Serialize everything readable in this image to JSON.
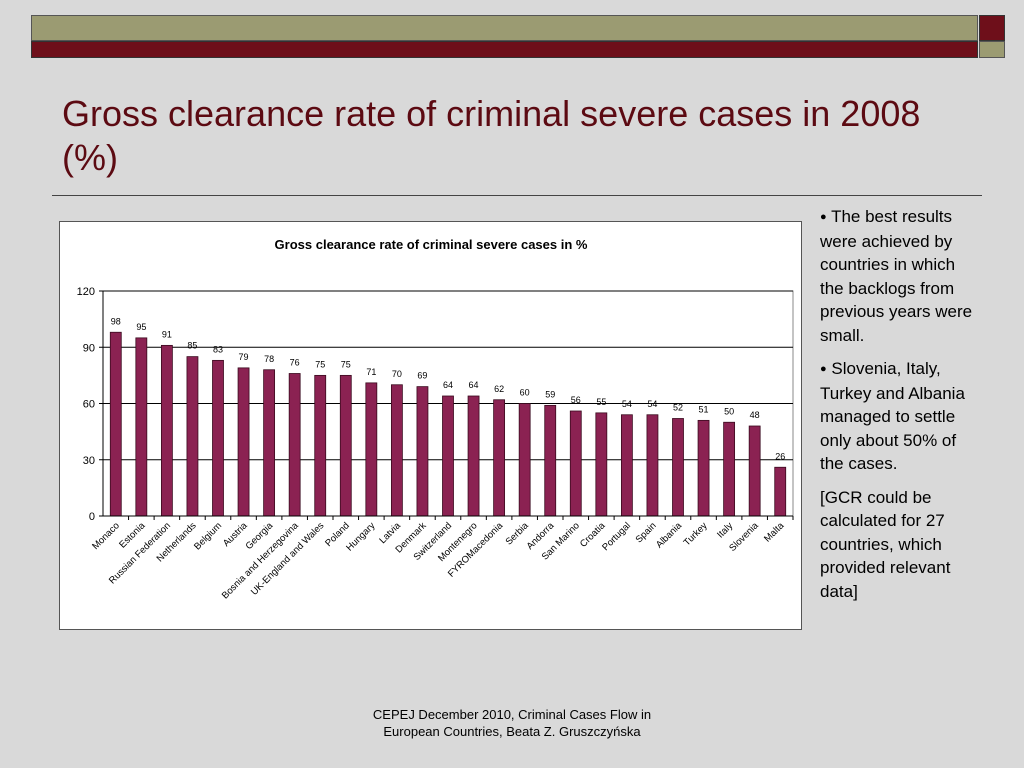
{
  "slide": {
    "title": "Gross clearance rate of criminal severe cases in 2008 (%)"
  },
  "chart_data": {
    "type": "bar",
    "title": "Gross clearance rate of criminal severe cases in %",
    "xlabel": "",
    "ylabel": "",
    "ylim": [
      0,
      120
    ],
    "yticks": [
      0,
      30,
      60,
      90,
      120
    ],
    "grid": true,
    "legend": "none",
    "bar_color": "#8b2252",
    "categories": [
      "Monaco",
      "Estonia",
      "Russian Federation",
      "Netherlands",
      "Belgium",
      "Austria",
      "Georgia",
      "Bosnia and Herzegovina",
      "UK-England and Wales",
      "Poland",
      "Hungary",
      "Latvia",
      "Denmark",
      "Switzerland",
      "Montenegro",
      "FYROMacedonia",
      "Serbia",
      "Andorra",
      "San Marino",
      "Croatia",
      "Portugal",
      "Spain",
      "Albania",
      "Turkey",
      "Italy",
      "Slovenia",
      "Malta"
    ],
    "values": [
      98,
      95,
      91,
      85,
      83,
      79,
      78,
      76,
      75,
      75,
      71,
      70,
      69,
      64,
      64,
      62,
      60,
      59,
      56,
      55,
      54,
      54,
      52,
      51,
      50,
      48,
      26
    ]
  },
  "bullets": {
    "b1": "The best results were achieved by countries in which the backlogs from previous years were small.",
    "b2": "Slovenia, Italy, Turkey and Albania managed to settle only about 50% of the cases.",
    "b3": "[GCR could be calculated for 27 countries, which provided relevant data]"
  },
  "footer": {
    "line1": "CEPEJ December 2010, Criminal Cases Flow in",
    "line2": "European Countries, Beata Z. Gruszczyńska"
  },
  "colors": {
    "title": "#5c0a12",
    "band_olive": "#9b9b72",
    "band_maroon": "#6e0f1a",
    "background": "#d9d9d9"
  }
}
